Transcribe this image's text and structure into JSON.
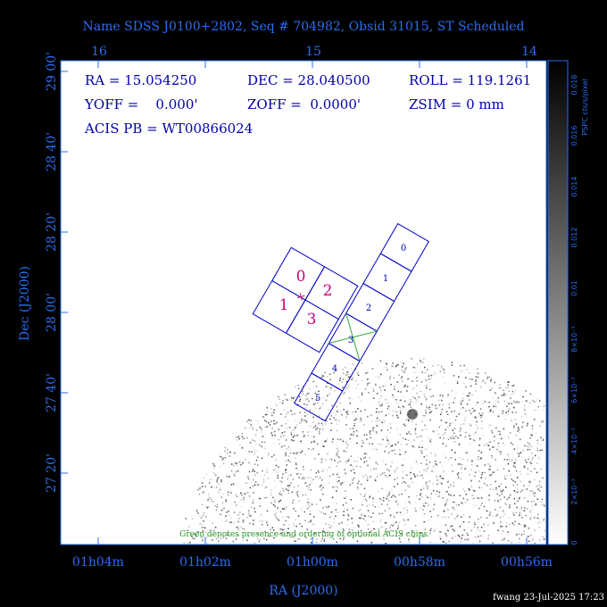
{
  "title": "Name SDSS J0100+2802, Seq # 704982, Obsid 31015, ST Scheduled",
  "top_axis": [
    "16",
    "15",
    "14"
  ],
  "left_axis": [
    "29 00'",
    "28 40'",
    "28 20'",
    "28 00'",
    "27 40'",
    "27 20'"
  ],
  "bottom_axis": [
    "01h04m",
    "01h02m",
    "01h00m",
    "00h58m",
    "00h56m"
  ],
  "x_title": "RA (J2000)",
  "y_title": "Dec (J2000)",
  "info": [
    "RA = 15.054250",
    "DEC = 28.040500",
    "ROLL = 119.1261",
    "YOFF =    0.000'",
    "ZOFF =  0.0000'",
    "ZSIM = 0 mm",
    "ACIS PB = WT00866024"
  ],
  "acis_i": [
    "0",
    "2",
    "1",
    "3"
  ],
  "acis_s": [
    "0",
    "1",
    "2",
    "3",
    "4",
    "5"
  ],
  "colorbar": {
    "title": "PSPC cts/s/pixel",
    "labels": [
      "0",
      "2×10⁻³",
      "4×10⁻³",
      "6×10⁻³",
      "8×10⁻³",
      "0.01",
      "0.012",
      "0.014",
      "0.016",
      "0.018"
    ]
  },
  "note": "Green denotes presence and ordering of optional ACIS chips",
  "footer": "fwang 23-Jul-2025 17:23"
}
